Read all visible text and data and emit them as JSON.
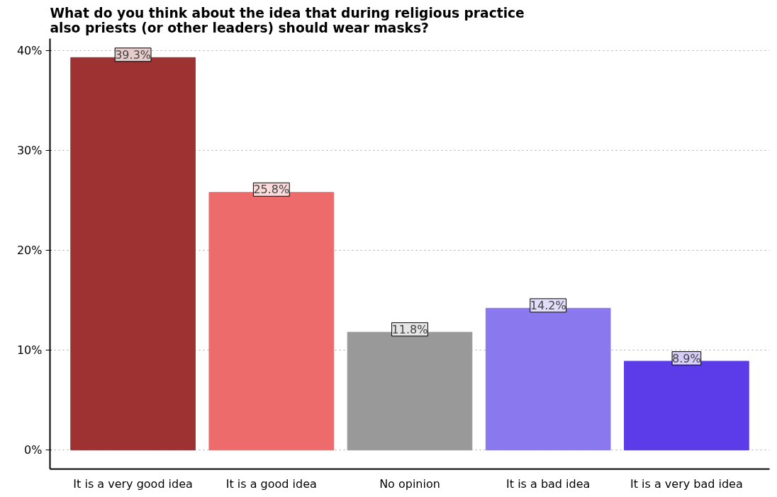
{
  "chart_data": {
    "type": "bar",
    "title": "What do you think about the idea that during religious practice\nalso priests (or other leaders) should wear masks?",
    "categories": [
      "It is a very good idea",
      "It is a good idea",
      "No opinion",
      "It is a bad idea",
      "It is a very bad idea"
    ],
    "values": [
      39.3,
      25.8,
      11.8,
      14.2,
      8.9
    ],
    "colors": [
      "#9e3232",
      "#ee6b6b",
      "#999999",
      "#8a78ee",
      "#5b3ce8"
    ],
    "value_labels": [
      "39.3%",
      "25.8%",
      "11.8%",
      "14.2%",
      "8.9%"
    ],
    "ylim": [
      -1.9,
      41.2
    ],
    "yticks": [
      {
        "value": 0,
        "label": "0%"
      },
      {
        "value": 10,
        "label": "10%"
      },
      {
        "value": 20,
        "label": "20%"
      },
      {
        "value": 30,
        "label": "30%"
      },
      {
        "value": 40,
        "label": "40%"
      }
    ],
    "grid": "y"
  }
}
